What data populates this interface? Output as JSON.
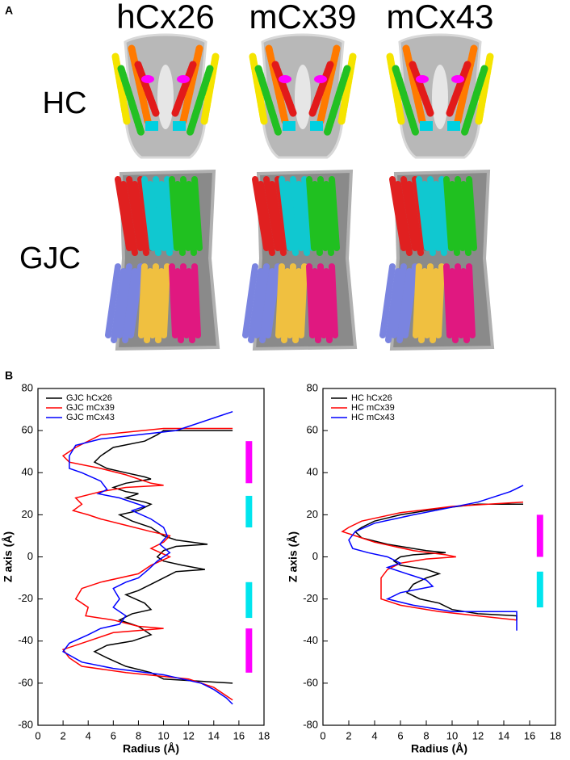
{
  "panel_a": {
    "label": "A",
    "columns": [
      "hCx26",
      "mCx39",
      "mCx43"
    ],
    "rows": [
      "HC",
      "GJC"
    ]
  },
  "panel_b": {
    "label": "B"
  },
  "chart_data": [
    {
      "type": "line",
      "xlabel": "Radius (Å)",
      "ylabel": "Z axis (Å)",
      "xlim": [
        0,
        18
      ],
      "xticks": [
        0,
        2,
        4,
        6,
        8,
        10,
        12,
        14,
        16,
        18
      ],
      "ylim": [
        -80,
        80
      ],
      "yticks": [
        -80,
        -60,
        -40,
        -20,
        0,
        20,
        40,
        60,
        80
      ],
      "legend": "top-left",
      "series": [
        {
          "name": "GJC hCx26",
          "color": "#000000",
          "x": [
            15.5,
            10,
            9.5,
            8.5,
            6,
            5,
            4.5,
            5.5,
            7,
            8.5,
            9,
            7,
            6,
            7,
            8,
            7,
            8.5,
            9,
            8,
            6.5,
            7.5,
            9,
            10,
            11,
            13.5,
            11,
            10,
            9.5,
            10,
            11.5,
            13.3,
            11,
            10,
            9,
            8,
            7,
            8.5,
            9,
            7.5,
            6.5,
            8,
            9,
            7.5,
            5.5,
            4.5,
            5.5,
            7,
            9,
            10,
            15.5
          ],
          "values": [
            60,
            60,
            58,
            55,
            52,
            48,
            45,
            42,
            40,
            38,
            37,
            35,
            33,
            31,
            30,
            28,
            26,
            25,
            22,
            20,
            17,
            14,
            10,
            8,
            6,
            5,
            3,
            0,
            -2,
            -4,
            -6,
            -7,
            -10,
            -13,
            -16,
            -18,
            -22,
            -25,
            -27,
            -30,
            -33,
            -37,
            -40,
            -42,
            -45,
            -48,
            -52,
            -55,
            -58,
            -60
          ]
        },
        {
          "name": "GJC mCx39",
          "color": "#ff0000",
          "x": [
            15.5,
            10,
            5,
            3,
            2,
            2.5,
            5,
            7,
            9,
            10,
            7,
            5,
            3,
            3.5,
            2.8,
            4,
            5,
            7,
            9,
            10.5,
            10,
            9,
            10.5,
            9,
            8,
            5,
            3.5,
            3,
            4,
            3.8,
            6,
            8,
            10,
            6,
            4,
            2,
            2.5,
            3.5,
            7,
            12,
            14,
            15,
            15.5
          ],
          "values": [
            61,
            61,
            58,
            52,
            48,
            45,
            42,
            39,
            35,
            34,
            33,
            31,
            28,
            25,
            22,
            20,
            18,
            15,
            12,
            10,
            7,
            4,
            0,
            -4,
            -8,
            -12,
            -15,
            -20,
            -24,
            -28,
            -30,
            -33,
            -34,
            -36,
            -40,
            -44,
            -48,
            -52,
            -55,
            -58,
            -62,
            -66,
            -68
          ]
        },
        {
          "name": "GJC mCx43",
          "color": "#0000ff",
          "x": [
            15.5,
            14,
            11,
            5,
            3,
            2.5,
            2.5,
            3.5,
            5,
            5.5,
            4.8,
            6.5,
            8.5,
            7.5,
            9,
            10,
            10.3,
            9.7,
            10.5,
            9.5,
            8.8,
            8,
            7,
            6,
            6.5,
            6,
            7,
            6.5,
            5,
            4,
            2.5,
            2,
            3.5,
            6,
            10,
            13,
            14,
            15,
            15.5
          ],
          "values": [
            69,
            66,
            60,
            56,
            53,
            48,
            42,
            40,
            36,
            32,
            30,
            28,
            24,
            22,
            18,
            14,
            10,
            6,
            2,
            -2,
            -6,
            -10,
            -12,
            -15,
            -20,
            -24,
            -28,
            -32,
            -34,
            -37,
            -41,
            -45,
            -50,
            -53,
            -56,
            -60,
            -63,
            -67,
            -70
          ]
        }
      ],
      "bars": [
        {
          "color": "#ff00ff",
          "x": 16.8,
          "range": [
            35,
            55
          ]
        },
        {
          "color": "#00e5ee",
          "x": 16.8,
          "range": [
            14,
            29
          ]
        },
        {
          "color": "#00e5ee",
          "x": 16.8,
          "range": [
            -29,
            -12
          ]
        },
        {
          "color": "#ff00ff",
          "x": 16.8,
          "range": [
            -55,
            -34
          ]
        }
      ]
    },
    {
      "type": "line",
      "xlabel": "Radius (Å)",
      "ylabel": "Z axis (Å)",
      "xlim": [
        0,
        18
      ],
      "xticks": [
        0,
        2,
        4,
        6,
        8,
        10,
        12,
        14,
        16,
        18
      ],
      "ylim": [
        -80,
        80
      ],
      "yticks": [
        -80,
        -60,
        -40,
        -20,
        0,
        20,
        40,
        60,
        80
      ],
      "legend": "top-left",
      "series": [
        {
          "name": "HC hCx26",
          "color": "#000000",
          "x": [
            15.5,
            12,
            9,
            6,
            4,
            3,
            2.5,
            3,
            5,
            8,
            9.5,
            7,
            6,
            5.5,
            6,
            8,
            9,
            8,
            7,
            6.5,
            7.5,
            9,
            10,
            12,
            15,
            15
          ],
          "values": [
            25,
            25,
            23,
            20,
            17,
            14,
            12,
            9,
            6,
            3,
            2,
            1,
            0,
            -2,
            -4,
            -6,
            -8,
            -10,
            -13,
            -17,
            -20,
            -22,
            -25,
            -27,
            -28,
            -30
          ]
        },
        {
          "name": "HC mCx39",
          "color": "#ff0000",
          "x": [
            15.5,
            10,
            6,
            3,
            2,
            1.5,
            2.5,
            4,
            7,
            9.5,
            10.3,
            8,
            6,
            5,
            4.5,
            4.5,
            4.5,
            6,
            9,
            12,
            15
          ],
          "values": [
            26,
            24,
            21,
            17,
            14,
            12,
            10,
            7,
            3,
            1,
            0,
            -1,
            -3,
            -6,
            -10,
            -15,
            -20,
            -23,
            -26,
            -28,
            -30
          ]
        },
        {
          "name": "HC mCx43",
          "color": "#0000ff",
          "x": [
            15.5,
            14.5,
            12,
            7,
            4,
            2.5,
            2,
            2.3,
            3.5,
            5,
            6,
            5,
            6.5,
            8,
            8.5,
            6,
            5,
            7,
            10,
            15,
            15
          ],
          "values": [
            34,
            31,
            26,
            20,
            16,
            12,
            8,
            4,
            2,
            0,
            -3,
            -5,
            -8,
            -11,
            -14,
            -17,
            -20,
            -23,
            -26,
            -26,
            -35
          ]
        }
      ],
      "bars": [
        {
          "color": "#ff00ff",
          "x": 16.8,
          "range": [
            0,
            20
          ]
        },
        {
          "color": "#00e5ee",
          "x": 16.8,
          "range": [
            -24,
            -7
          ]
        }
      ]
    }
  ]
}
